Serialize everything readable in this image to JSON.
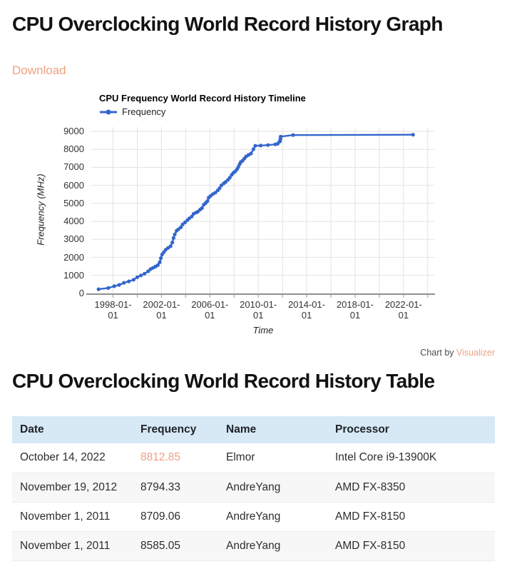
{
  "page": {
    "graph_heading": "CPU Overclocking World Record History Graph",
    "download_label": "Download",
    "table_heading": "CPU Overclocking World Record History Table",
    "credit_prefix": "Chart by",
    "credit_brand": "Visualizer"
  },
  "colors": {
    "accent_salmon": "#EFA183",
    "line_blue": "#3366CC",
    "table_header_bg": "#D7E9F5",
    "row_alt_bg": "#F7F7F7"
  },
  "chart_data": {
    "type": "line",
    "title": "CPU Frequency World Record History Timeline",
    "xlabel": "Time",
    "ylabel": "Frequency (MHz)",
    "legend_position": "top-left",
    "grid": true,
    "xlim": [
      1996.2,
      2024.6
    ],
    "ylim": [
      0,
      9000
    ],
    "y_tick_step": 1000,
    "grid_years": [
      1998,
      2024
    ],
    "grid_x_step_years": 2,
    "x_ticks": [
      {
        "year": 1998,
        "label": "1998-01-01"
      },
      {
        "year": 2002,
        "label": "2002-01-01"
      },
      {
        "year": 2006,
        "label": "2006-01-01"
      },
      {
        "year": 2010,
        "label": "2010-01-01"
      },
      {
        "year": 2014,
        "label": "2014-01-01"
      },
      {
        "year": 2018,
        "label": "2018-01-01"
      },
      {
        "year": 2022,
        "label": "2022-01-01"
      }
    ],
    "series": [
      {
        "name": "Frequency",
        "color": "#3366CC",
        "points": [
          [
            1996.8,
            233
          ],
          [
            1997.6,
            300
          ],
          [
            1998.1,
            400
          ],
          [
            1998.5,
            470
          ],
          [
            1998.9,
            590
          ],
          [
            1999.3,
            670
          ],
          [
            1999.7,
            760
          ],
          [
            2000.0,
            900
          ],
          [
            2000.3,
            1000
          ],
          [
            2000.6,
            1100
          ],
          [
            2000.9,
            1230
          ],
          [
            2001.1,
            1350
          ],
          [
            2001.3,
            1420
          ],
          [
            2001.5,
            1490
          ],
          [
            2001.7,
            1570
          ],
          [
            2001.85,
            1730
          ],
          [
            2001.95,
            1960
          ],
          [
            2002.05,
            2160
          ],
          [
            2002.2,
            2290
          ],
          [
            2002.35,
            2430
          ],
          [
            2002.55,
            2530
          ],
          [
            2002.75,
            2620
          ],
          [
            2002.9,
            2830
          ],
          [
            2003.0,
            3080
          ],
          [
            2003.1,
            3280
          ],
          [
            2003.25,
            3480
          ],
          [
            2003.4,
            3560
          ],
          [
            2003.6,
            3670
          ],
          [
            2003.75,
            3830
          ],
          [
            2003.95,
            3950
          ],
          [
            2004.15,
            4070
          ],
          [
            2004.3,
            4170
          ],
          [
            2004.5,
            4270
          ],
          [
            2004.65,
            4420
          ],
          [
            2004.85,
            4490
          ],
          [
            2005.0,
            4540
          ],
          [
            2005.2,
            4660
          ],
          [
            2005.35,
            4740
          ],
          [
            2005.5,
            4930
          ],
          [
            2005.65,
            5020
          ],
          [
            2005.8,
            5130
          ],
          [
            2005.9,
            5320
          ],
          [
            2006.05,
            5410
          ],
          [
            2006.25,
            5520
          ],
          [
            2006.45,
            5600
          ],
          [
            2006.65,
            5720
          ],
          [
            2006.8,
            5840
          ],
          [
            2006.95,
            6000
          ],
          [
            2007.15,
            6110
          ],
          [
            2007.3,
            6190
          ],
          [
            2007.5,
            6310
          ],
          [
            2007.65,
            6430
          ],
          [
            2007.8,
            6590
          ],
          [
            2007.95,
            6700
          ],
          [
            2008.1,
            6780
          ],
          [
            2008.25,
            6900
          ],
          [
            2008.35,
            7020
          ],
          [
            2008.45,
            7170
          ],
          [
            2008.55,
            7290
          ],
          [
            2008.7,
            7370
          ],
          [
            2008.85,
            7490
          ],
          [
            2009.0,
            7610
          ],
          [
            2009.2,
            7690
          ],
          [
            2009.4,
            7770
          ],
          [
            2009.6,
            8010
          ],
          [
            2009.75,
            8199
          ],
          [
            2010.2,
            8210
          ],
          [
            2010.8,
            8240
          ],
          [
            2011.4,
            8280
          ],
          [
            2011.6,
            8309
          ],
          [
            2011.75,
            8429
          ],
          [
            2011.8,
            8461
          ],
          [
            2011.83,
            8585.05
          ],
          [
            2011.85,
            8709.06
          ],
          [
            2012.88,
            8794.33
          ],
          [
            2022.79,
            8812.85
          ]
        ]
      }
    ]
  },
  "table": {
    "columns": [
      "Date",
      "Frequency",
      "Name",
      "Processor"
    ],
    "rows": [
      {
        "date": "October 14, 2022",
        "frequency": "8812.85",
        "name": "Elmor",
        "processor": "Intel Core i9-13900K",
        "highlight_frequency": true
      },
      {
        "date": "November 19, 2012",
        "frequency": "8794.33",
        "name": "AndreYang",
        "processor": "AMD FX-8350",
        "highlight_frequency": false
      },
      {
        "date": "November 1, 2011",
        "frequency": "8709.06",
        "name": "AndreYang",
        "processor": "AMD FX-8150",
        "highlight_frequency": false
      },
      {
        "date": "November 1, 2011",
        "frequency": "8585.05",
        "name": "AndreYang",
        "processor": "AMD FX-8150",
        "highlight_frequency": false
      }
    ]
  }
}
